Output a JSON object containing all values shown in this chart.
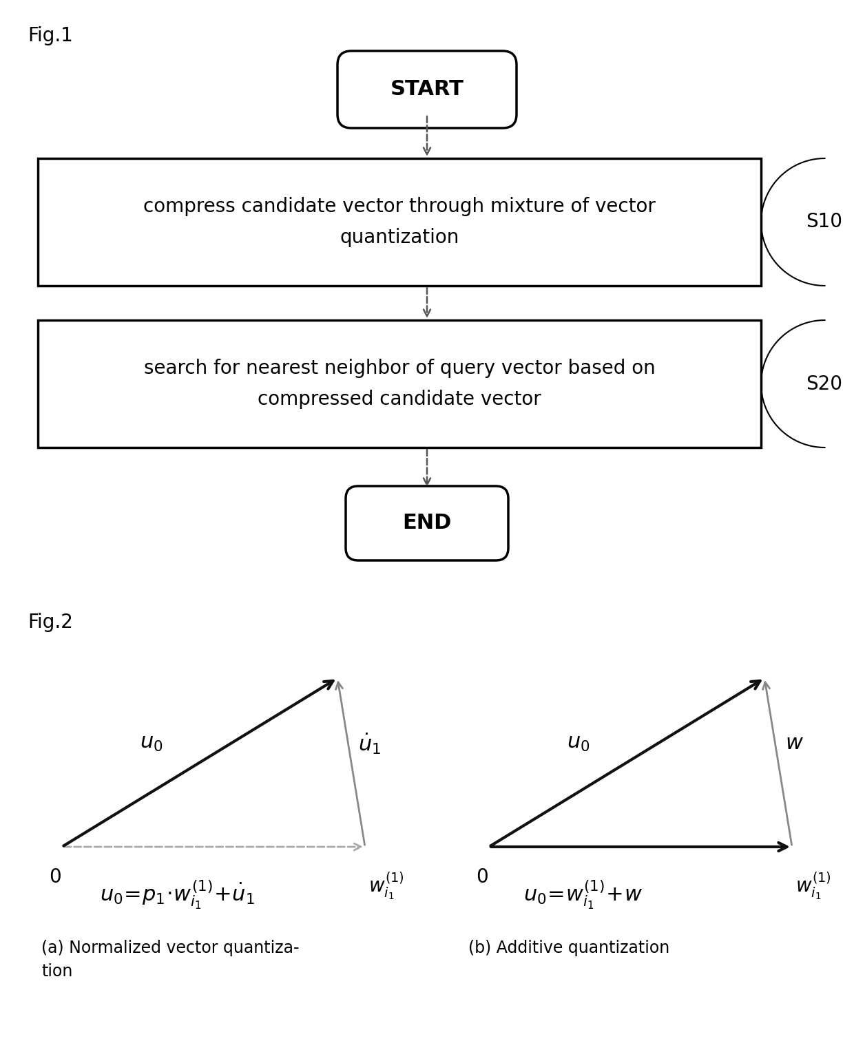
{
  "fig_label1": "Fig.1",
  "fig_label2": "Fig.2",
  "start_text": "START",
  "end_text": "END",
  "box1_text": "compress candidate vector through mixture of vector\nquantization",
  "box2_text": "search for nearest neighbor of query vector based on\ncompressed candidate vector",
  "s10_label": "S10",
  "s20_label": "S20",
  "caption_a": "(a) Normalized vector quantiza-\ntion",
  "caption_b": "(b) Additive quantization",
  "background_color": "#ffffff",
  "text_color": "#000000",
  "gray_color": "#888888",
  "dark_gray": "#444444"
}
